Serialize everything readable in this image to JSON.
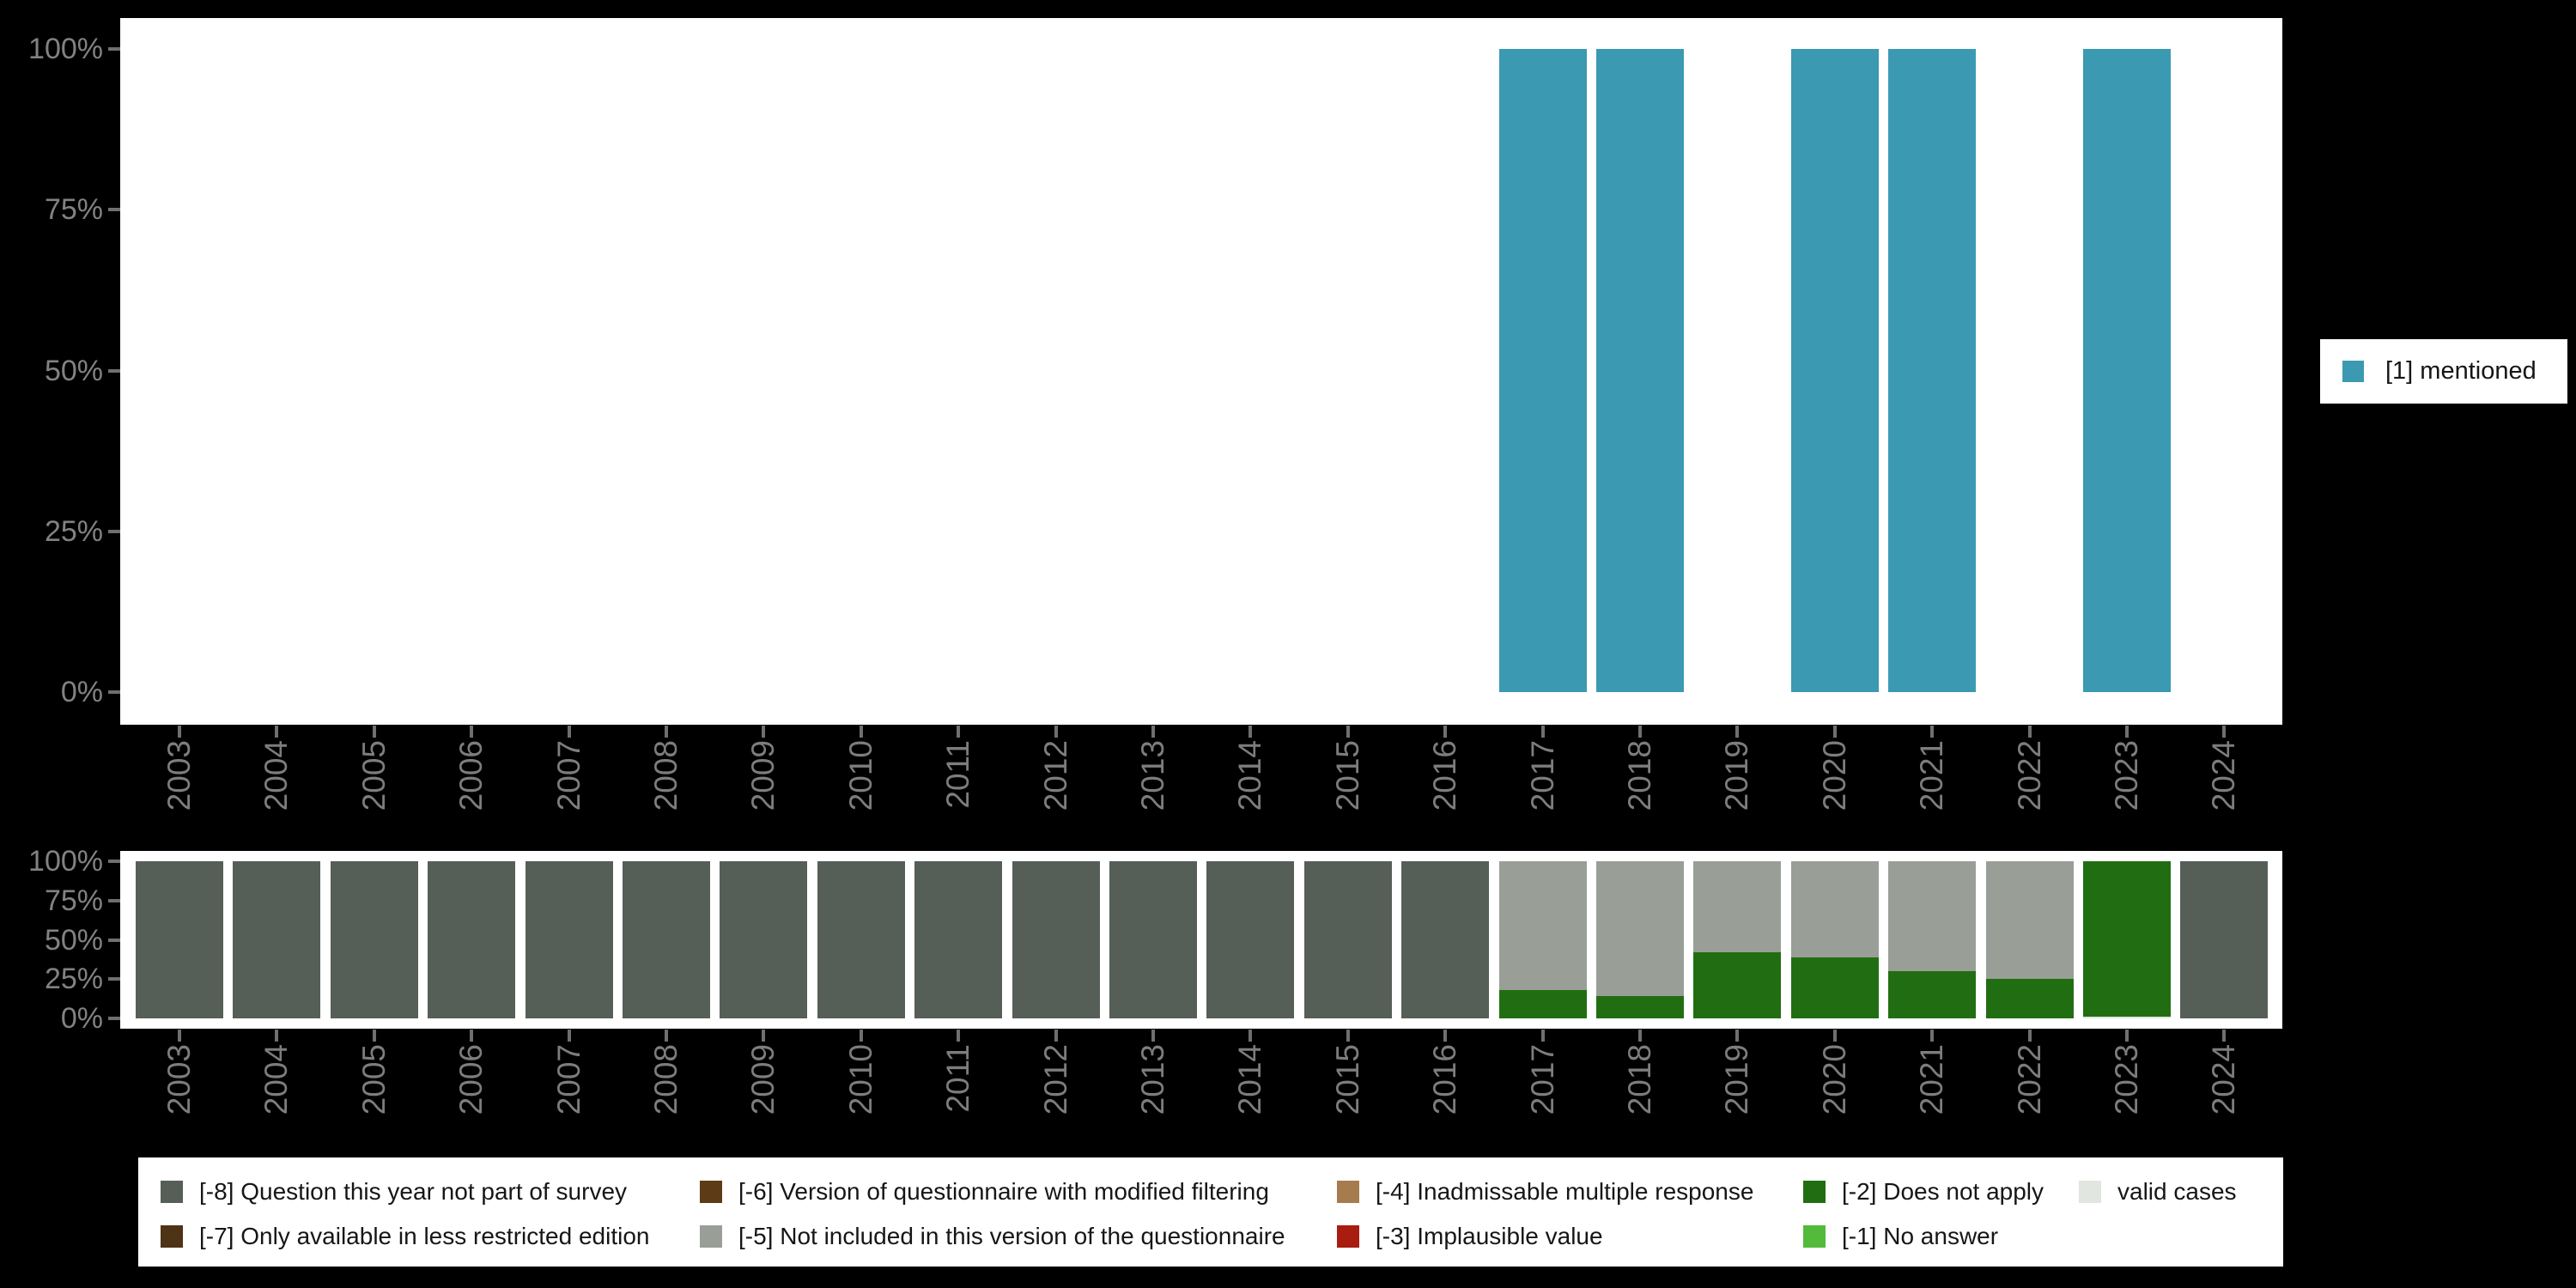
{
  "page": {
    "background": "#000000",
    "panel_background": "#ffffff"
  },
  "chart_data": [
    {
      "chart": "value-distribution-by-year",
      "type": "bar",
      "title": "",
      "categories": [
        "2003",
        "2004",
        "2005",
        "2006",
        "2007",
        "2008",
        "2009",
        "2010",
        "2011",
        "2012",
        "2013",
        "2014",
        "2015",
        "2016",
        "2017",
        "2018",
        "2019",
        "2020",
        "2021",
        "2022",
        "2023",
        "2024"
      ],
      "y_axis_ticks": [
        "100%",
        "75%",
        "50%",
        "25%",
        "0%"
      ],
      "ylim": [
        0,
        100
      ],
      "grid": false,
      "legend_position": "right",
      "series": [
        {
          "name": "[1] mentioned",
          "color": "#3b99b2",
          "values": [
            null,
            null,
            null,
            null,
            null,
            null,
            null,
            null,
            null,
            null,
            null,
            null,
            null,
            null,
            100,
            100,
            null,
            100,
            100,
            null,
            100,
            null
          ]
        }
      ]
    },
    {
      "chart": "missing-codes-by-year",
      "type": "stacked-bar",
      "title": "",
      "categories": [
        "2003",
        "2004",
        "2005",
        "2006",
        "2007",
        "2008",
        "2009",
        "2010",
        "2011",
        "2012",
        "2013",
        "2014",
        "2015",
        "2016",
        "2017",
        "2018",
        "2019",
        "2020",
        "2021",
        "2022",
        "2023",
        "2024"
      ],
      "y_axis_ticks": [
        "100%",
        "75%",
        "50%",
        "25%",
        "0%"
      ],
      "ylim": [
        0,
        100
      ],
      "grid": false,
      "legend_position": "bottom",
      "stack_order_note": "series listed bottom-to-top",
      "series": [
        {
          "name": "valid cases",
          "color": "#e2e6e0",
          "values": [
            0,
            0,
            0,
            0,
            0,
            0,
            0,
            0,
            0,
            0,
            0,
            0,
            0,
            0,
            0,
            0,
            0,
            0,
            0,
            0,
            1,
            0
          ]
        },
        {
          "name": "[-2] Does not apply",
          "color": "#216e12",
          "values": [
            0,
            0,
            0,
            0,
            0,
            0,
            0,
            0,
            0,
            0,
            0,
            0,
            0,
            0,
            18,
            14,
            42,
            39,
            30,
            25,
            99,
            0
          ]
        },
        {
          "name": "[-5] Not included in this version of the questionnaire",
          "color": "#999e97",
          "values": [
            0,
            0,
            0,
            0,
            0,
            0,
            0,
            0,
            0,
            0,
            0,
            0,
            0,
            0,
            82,
            86,
            58,
            61,
            70,
            75,
            0,
            0
          ]
        },
        {
          "name": "[-8] Question this year not part of survey",
          "color": "#565f57",
          "values": [
            100,
            100,
            100,
            100,
            100,
            100,
            100,
            100,
            100,
            100,
            100,
            100,
            100,
            100,
            0,
            0,
            0,
            0,
            0,
            0,
            0,
            100
          ]
        }
      ]
    }
  ],
  "legend_right": {
    "items": [
      {
        "label": "[1] mentioned",
        "color": "#3b99b2"
      }
    ]
  },
  "legend_bottom": {
    "items": [
      {
        "label": "[-8] Question this year not part of survey",
        "color": "#565f57",
        "col": 0,
        "row": 0
      },
      {
        "label": "[-7] Only available in less restricted edition",
        "color": "#4e3317",
        "col": 0,
        "row": 1
      },
      {
        "label": "[-6] Version of questionnaire with modified filtering",
        "color": "#5c3b16",
        "col": 1,
        "row": 0
      },
      {
        "label": "[-5] Not included in this version of the questionnaire",
        "color": "#999e97",
        "col": 1,
        "row": 1
      },
      {
        "label": "[-4] Inadmissable multiple response",
        "color": "#a67c4e",
        "col": 2,
        "row": 0
      },
      {
        "label": "[-3] Implausible value",
        "color": "#a91c10",
        "col": 2,
        "row": 1
      },
      {
        "label": "[-2] Does not apply",
        "color": "#216e12",
        "col": 3,
        "row": 0
      },
      {
        "label": "[-1] No answer",
        "color": "#53ba3b",
        "col": 3,
        "row": 1
      },
      {
        "label": "valid cases",
        "color": "#e2e6e0",
        "col": 4,
        "row": 0
      }
    ]
  }
}
